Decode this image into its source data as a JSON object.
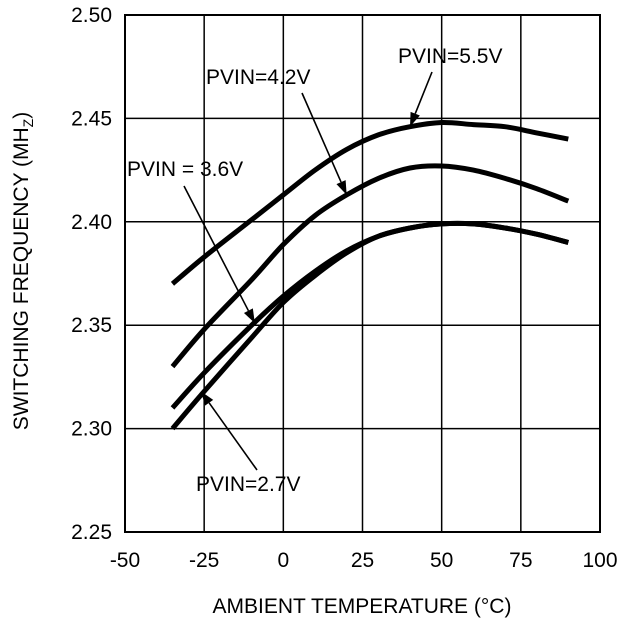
{
  "chart_data": {
    "type": "line",
    "title": "",
    "xlabel": "AMBIENT TEMPERATURE (°C)",
    "ylabel": "SWITCHING FREQUENCY (MHz)",
    "ylabel_main": "SWITCHING FREQUENCY (MH",
    "ylabel_sub": "Z",
    "ylabel_close": ")",
    "xlim": [
      -50,
      100
    ],
    "ylim": [
      2.25,
      2.5
    ],
    "xticks": [
      -50,
      -25,
      0,
      25,
      50,
      75,
      100
    ],
    "xtick_labels": [
      "-50",
      "-25",
      "0",
      "25",
      "50",
      "75",
      "100"
    ],
    "yticks": [
      2.25,
      2.3,
      2.35,
      2.4,
      2.45,
      2.5
    ],
    "ytick_labels": [
      "2.25",
      "2.30",
      "2.35",
      "2.40",
      "2.45",
      "2.50"
    ],
    "grid": true,
    "legend": "none",
    "series": [
      {
        "name": "PVIN=5.5V",
        "x": [
          -35,
          -25,
          -10,
          0,
          10,
          20,
          30,
          40,
          50,
          60,
          70,
          80,
          90
        ],
        "y": [
          2.37,
          2.383,
          2.401,
          2.413,
          2.425,
          2.435,
          2.442,
          2.446,
          2.448,
          2.447,
          2.446,
          2.443,
          2.44
        ]
      },
      {
        "name": "PVIN=4.2V",
        "x": [
          -35,
          -25,
          -10,
          0,
          10,
          20,
          30,
          40,
          50,
          60,
          70,
          80,
          90
        ],
        "y": [
          2.33,
          2.348,
          2.372,
          2.389,
          2.403,
          2.413,
          2.421,
          2.426,
          2.427,
          2.425,
          2.421,
          2.416,
          2.41
        ]
      },
      {
        "name": "PVIN = 3.6V",
        "x": [
          -35,
          -25,
          -10,
          0,
          10,
          20,
          30,
          40,
          50,
          60,
          70,
          80,
          90
        ],
        "y": [
          2.31,
          2.327,
          2.35,
          2.364,
          2.376,
          2.386,
          2.393,
          2.397,
          2.399,
          2.399,
          2.397,
          2.394,
          2.39
        ]
      },
      {
        "name": "PVIN=2.7V",
        "x": [
          -35,
          -25,
          -10,
          0,
          10,
          20,
          30,
          40,
          50,
          60,
          70,
          80,
          90
        ],
        "y": [
          2.3,
          2.318,
          2.344,
          2.361,
          2.374,
          2.385,
          2.393,
          2.397,
          2.399,
          2.399,
          2.397,
          2.394,
          2.39
        ]
      }
    ],
    "annotations": [
      {
        "text": "PVIN=5.5V",
        "target": [
          40,
          2.446
        ]
      },
      {
        "text": "PVIN=4.2V",
        "target": [
          20,
          2.413
        ]
      },
      {
        "text": "PVIN = 3.6V",
        "target": [
          -9,
          2.351
        ]
      },
      {
        "text": "PVIN=2.7V",
        "target": [
          -26,
          2.318
        ]
      }
    ]
  }
}
